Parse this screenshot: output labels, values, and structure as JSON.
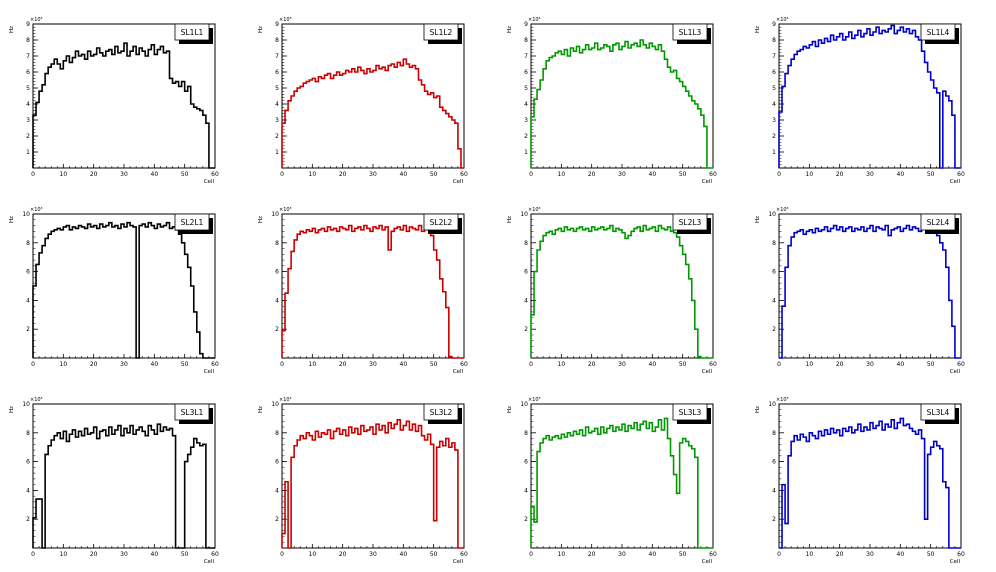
{
  "chart_data": [
    {
      "type": "step",
      "title": "SL1L1",
      "color": "#000000",
      "xlabel": "Cell",
      "ylabel": "Hz",
      "multiplier": "×10³",
      "xlim": [
        0,
        60
      ],
      "ylim": [
        0,
        9
      ],
      "xticks": [
        0,
        10,
        20,
        30,
        40,
        50,
        60
      ],
      "yticks": [
        1,
        2,
        3,
        4,
        5,
        6,
        7,
        8,
        9
      ],
      "values": [
        3.3,
        4.1,
        4.8,
        5.2,
        5.9,
        6.3,
        6.5,
        6.8,
        6.5,
        6.2,
        6.7,
        7.0,
        6.6,
        6.9,
        7.3,
        7.0,
        7.1,
        6.8,
        7.3,
        7.0,
        7.1,
        7.5,
        7.2,
        7.0,
        7.3,
        7.4,
        7.1,
        7.6,
        7.2,
        7.3,
        7.8,
        7.0,
        7.3,
        7.6,
        7.1,
        7.5,
        7.3,
        7.0,
        7.4,
        7.7,
        7.1,
        7.4,
        7.6,
        7.2,
        7.3,
        5.6,
        5.3,
        5.4,
        5.1,
        5.4,
        4.8,
        5.1,
        4.0,
        3.8,
        3.7,
        3.6,
        3.3,
        2.8,
        0,
        0
      ]
    },
    {
      "type": "step",
      "title": "SL1L2",
      "color": "#cc0000",
      "xlabel": "Cell",
      "ylabel": "Hz",
      "multiplier": "×10³",
      "xlim": [
        0,
        60
      ],
      "ylim": [
        0,
        9
      ],
      "xticks": [
        0,
        10,
        20,
        30,
        40,
        50,
        60
      ],
      "yticks": [
        1,
        2,
        3,
        4,
        5,
        6,
        7,
        8,
        9
      ],
      "values": [
        2.8,
        3.6,
        4.2,
        4.5,
        4.8,
        5.0,
        5.1,
        5.3,
        5.4,
        5.5,
        5.6,
        5.4,
        5.7,
        5.6,
        5.8,
        5.9,
        5.6,
        5.8,
        6.0,
        5.8,
        5.9,
        6.1,
        6.0,
        6.2,
        6.0,
        6.3,
        6.1,
        5.9,
        6.2,
        6.0,
        6.1,
        6.4,
        6.2,
        6.3,
        6.1,
        6.4,
        6.5,
        6.3,
        6.6,
        6.4,
        6.8,
        6.5,
        6.3,
        6.4,
        6.2,
        5.5,
        5.2,
        4.8,
        4.6,
        4.7,
        4.4,
        4.5,
        3.8,
        3.6,
        3.4,
        3.2,
        3.0,
        2.8,
        1.2,
        0
      ]
    },
    {
      "type": "step",
      "title": "SL1L3",
      "color": "#009900",
      "xlabel": "Cell",
      "ylabel": "Hz",
      "multiplier": "×10³",
      "xlim": [
        0,
        60
      ],
      "ylim": [
        0,
        9
      ],
      "xticks": [
        0,
        10,
        20,
        30,
        40,
        50,
        60
      ],
      "yticks": [
        1,
        2,
        3,
        4,
        5,
        6,
        7,
        8,
        9
      ],
      "values": [
        3.2,
        4.3,
        4.9,
        5.5,
        6.2,
        6.7,
        6.9,
        7.0,
        7.2,
        7.3,
        7.1,
        7.4,
        7.0,
        7.5,
        7.3,
        7.6,
        7.2,
        7.4,
        7.7,
        7.4,
        7.5,
        7.8,
        7.4,
        7.5,
        7.7,
        7.6,
        7.3,
        7.7,
        7.8,
        7.4,
        7.6,
        7.9,
        7.5,
        7.7,
        7.8,
        7.6,
        8.0,
        7.7,
        7.5,
        7.8,
        7.6,
        7.4,
        7.7,
        7.3,
        6.8,
        6.3,
        6.0,
        6.1,
        5.6,
        5.4,
        5.1,
        4.8,
        4.5,
        4.2,
        4.0,
        3.7,
        3.3,
        2.6,
        0,
        0
      ]
    },
    {
      "type": "step",
      "title": "SL1L4",
      "color": "#0000cc",
      "xlabel": "Cell",
      "ylabel": "Hz",
      "multiplier": "×10³",
      "xlim": [
        0,
        60
      ],
      "ylim": [
        0,
        9
      ],
      "xticks": [
        0,
        10,
        20,
        30,
        40,
        50,
        60
      ],
      "yticks": [
        1,
        2,
        3,
        4,
        5,
        6,
        7,
        8,
        9
      ],
      "values": [
        3.5,
        5.1,
        5.9,
        6.4,
        6.8,
        7.1,
        7.3,
        7.4,
        7.6,
        7.5,
        7.7,
        7.9,
        7.6,
        8.0,
        7.8,
        8.1,
        7.9,
        8.3,
        8.0,
        8.2,
        8.4,
        8.0,
        8.2,
        8.5,
        8.1,
        8.3,
        8.6,
        8.2,
        8.4,
        8.7,
        8.3,
        8.5,
        8.8,
        8.4,
        8.6,
        8.5,
        8.7,
        8.9,
        8.4,
        8.6,
        8.8,
        8.5,
        8.7,
        8.4,
        8.6,
        8.2,
        8.0,
        7.3,
        6.6,
        6.0,
        5.5,
        5.0,
        4.7,
        0,
        4.8,
        4.5,
        4.2,
        3.3,
        0,
        0
      ]
    },
    {
      "type": "step",
      "title": "SL2L1",
      "color": "#000000",
      "xlabel": "Cell",
      "ylabel": "Hz",
      "multiplier": "×10³",
      "xlim": [
        0,
        60
      ],
      "ylim": [
        0,
        10
      ],
      "xticks": [
        0,
        10,
        20,
        30,
        40,
        50,
        60
      ],
      "yticks": [
        2,
        4,
        6,
        8,
        10
      ],
      "values": [
        5.0,
        6.5,
        7.3,
        7.8,
        8.3,
        8.6,
        8.8,
        8.9,
        9.0,
        8.9,
        9.1,
        9.2,
        8.9,
        9.1,
        9.0,
        9.2,
        9.1,
        9.0,
        9.3,
        9.1,
        9.2,
        9.0,
        9.3,
        9.1,
        9.2,
        9.4,
        9.1,
        9.2,
        9.0,
        9.3,
        9.1,
        9.4,
        9.2,
        9.1,
        0,
        9.2,
        9.3,
        9.1,
        9.4,
        9.2,
        9.0,
        9.3,
        9.1,
        9.2,
        9.4,
        9.0,
        9.1,
        8.9,
        8.6,
        8.0,
        7.2,
        6.3,
        5.0,
        3.2,
        1.8,
        0.3,
        0,
        0,
        0,
        0
      ]
    },
    {
      "type": "step",
      "title": "SL2L2",
      "color": "#cc0000",
      "xlabel": "Cell",
      "ylabel": "Hz",
      "multiplier": "×10³",
      "xlim": [
        0,
        60
      ],
      "ylim": [
        0,
        10
      ],
      "xticks": [
        0,
        10,
        20,
        30,
        40,
        50,
        60
      ],
      "yticks": [
        2,
        4,
        6,
        8,
        10
      ],
      "values": [
        1.9,
        4.5,
        6.2,
        7.4,
        8.2,
        8.6,
        8.8,
        8.7,
        8.9,
        8.8,
        9.0,
        8.7,
        8.9,
        9.0,
        8.8,
        9.1,
        8.9,
        9.0,
        8.8,
        9.1,
        9.0,
        8.9,
        9.2,
        8.8,
        9.0,
        9.1,
        8.9,
        9.2,
        9.0,
        8.8,
        9.1,
        9.0,
        9.2,
        8.9,
        9.1,
        7.5,
        8.8,
        9.0,
        9.1,
        8.9,
        9.2,
        8.8,
        9.1,
        9.0,
        8.9,
        9.2,
        8.8,
        9.3,
        8.9,
        8.5,
        7.5,
        6.8,
        5.5,
        4.6,
        3.5,
        0.1,
        0,
        0,
        0,
        0
      ]
    },
    {
      "type": "step",
      "title": "SL2L3",
      "color": "#009900",
      "xlabel": "Cell",
      "ylabel": "Hz",
      "multiplier": "×10³",
      "xlim": [
        0,
        60
      ],
      "ylim": [
        0,
        10
      ],
      "xticks": [
        0,
        10,
        20,
        30,
        40,
        50,
        60
      ],
      "yticks": [
        2,
        4,
        6,
        8,
        10
      ],
      "values": [
        3.0,
        6.0,
        7.5,
        8.1,
        8.5,
        8.7,
        8.8,
        8.6,
        8.9,
        9.0,
        8.8,
        9.1,
        8.9,
        9.0,
        8.8,
        9.0,
        9.1,
        8.9,
        9.0,
        8.8,
        9.1,
        8.9,
        9.0,
        9.1,
        8.9,
        9.0,
        9.2,
        8.8,
        9.0,
        8.9,
        8.7,
        8.3,
        8.5,
        8.8,
        9.0,
        9.1,
        8.8,
        9.2,
        8.9,
        9.0,
        9.1,
        8.8,
        9.2,
        9.0,
        8.9,
        9.1,
        8.8,
        8.7,
        8.4,
        7.8,
        7.2,
        6.5,
        5.5,
        4.0,
        2.0,
        0.1,
        0,
        0,
        0,
        0
      ]
    },
    {
      "type": "step",
      "title": "SL2L4",
      "color": "#0000cc",
      "xlabel": "Cell",
      "ylabel": "Hz",
      "multiplier": "×10³",
      "xlim": [
        0,
        60
      ],
      "ylim": [
        0,
        10
      ],
      "xticks": [
        0,
        10,
        20,
        30,
        40,
        50,
        60
      ],
      "yticks": [
        2,
        4,
        6,
        8,
        10
      ],
      "values": [
        0,
        3.6,
        6.3,
        7.8,
        8.4,
        8.7,
        8.8,
        8.9,
        8.6,
        8.8,
        8.9,
        8.7,
        9.0,
        8.8,
        8.9,
        9.1,
        8.8,
        9.0,
        9.2,
        8.9,
        9.1,
        8.8,
        9.0,
        9.1,
        8.8,
        9.0,
        8.9,
        9.1,
        8.8,
        9.0,
        9.2,
        8.8,
        9.1,
        9.0,
        8.9,
        9.2,
        8.5,
        8.9,
        9.0,
        9.1,
        8.8,
        9.0,
        9.2,
        8.9,
        9.1,
        9.0,
        8.8,
        9.1,
        9.0,
        8.9,
        9.2,
        8.8,
        8.5,
        8.0,
        7.5,
        6.3,
        4.0,
        2.2,
        0,
        0
      ]
    },
    {
      "type": "step",
      "title": "SL3L1",
      "color": "#000000",
      "xlabel": "Cell",
      "ylabel": "Hz",
      "multiplier": "×10³",
      "xlim": [
        0,
        60
      ],
      "ylim": [
        0,
        10
      ],
      "xticks": [
        0,
        10,
        20,
        30,
        40,
        50,
        60
      ],
      "yticks": [
        2,
        4,
        6,
        8,
        10
      ],
      "values": [
        2.1,
        3.4,
        3.4,
        0,
        6.5,
        7.1,
        7.5,
        7.8,
        8.0,
        7.6,
        8.1,
        7.4,
        7.9,
        8.2,
        7.7,
        8.1,
        7.8,
        8.3,
        7.9,
        8.0,
        8.4,
        7.6,
        8.1,
        8.2,
        7.8,
        8.4,
        7.9,
        8.2,
        8.5,
        7.8,
        8.3,
        8.0,
        8.5,
        7.9,
        8.2,
        8.4,
        8.1,
        7.8,
        8.5,
        8.2,
        7.9,
        8.6,
        8.1,
        8.4,
        8.2,
        8.3,
        7.8,
        0,
        0,
        0,
        6.0,
        6.5,
        7.0,
        7.6,
        7.3,
        7.1,
        7.2,
        0,
        0,
        0
      ]
    },
    {
      "type": "step",
      "title": "SL3L2",
      "color": "#cc0000",
      "xlabel": "Cell",
      "ylabel": "Hz",
      "multiplier": "×10³",
      "xlim": [
        0,
        60
      ],
      "ylim": [
        0,
        10
      ],
      "xticks": [
        0,
        10,
        20,
        30,
        40,
        50,
        60
      ],
      "yticks": [
        2,
        4,
        6,
        8,
        10
      ],
      "values": [
        1.0,
        4.6,
        0,
        6.3,
        7.1,
        7.5,
        7.8,
        7.6,
        8.0,
        7.8,
        7.5,
        8.1,
        7.7,
        8.0,
        7.9,
        8.2,
        7.6,
        8.1,
        8.3,
        7.9,
        8.2,
        7.8,
        8.4,
        8.0,
        8.3,
        7.9,
        8.5,
        8.1,
        8.2,
        8.4,
        7.9,
        8.6,
        8.2,
        8.5,
        8.0,
        8.7,
        8.3,
        8.6,
        8.9,
        8.2,
        8.5,
        8.8,
        8.2,
        8.6,
        8.1,
        8.5,
        7.8,
        7.5,
        7.9,
        7.2,
        1.9,
        7.0,
        7.4,
        7.1,
        7.6,
        7.0,
        7.3,
        6.8,
        0,
        0
      ]
    },
    {
      "type": "step",
      "title": "SL3L3",
      "color": "#009900",
      "xlabel": "Cell",
      "ylabel": "Hz",
      "multiplier": "×10³",
      "xlim": [
        0,
        60
      ],
      "ylim": [
        0,
        10
      ],
      "xticks": [
        0,
        10,
        20,
        30,
        40,
        50,
        60
      ],
      "yticks": [
        2,
        4,
        6,
        8,
        10
      ],
      "values": [
        2.9,
        1.8,
        6.7,
        7.3,
        7.6,
        7.8,
        7.5,
        7.7,
        7.8,
        7.6,
        7.9,
        7.7,
        8.0,
        7.8,
        8.1,
        7.9,
        8.2,
        7.8,
        8.4,
        8.0,
        8.1,
        8.3,
        7.9,
        8.4,
        8.0,
        8.3,
        8.5,
        8.1,
        8.4,
        8.2,
        8.6,
        8.1,
        8.5,
        8.3,
        8.7,
        8.2,
        8.6,
        8.8,
        8.3,
        8.7,
        8.1,
        8.4,
        8.9,
        8.2,
        9.0,
        7.6,
        6.4,
        5.1,
        3.8,
        7.3,
        7.6,
        7.4,
        7.1,
        6.9,
        6.3,
        0,
        0,
        0,
        0,
        0
      ]
    },
    {
      "type": "step",
      "title": "SL3L4",
      "color": "#0000cc",
      "xlabel": "Cell",
      "ylabel": "Hz",
      "multiplier": "×10³",
      "xlim": [
        0,
        60
      ],
      "ylim": [
        0,
        10
      ],
      "xticks": [
        0,
        10,
        20,
        30,
        40,
        50,
        60
      ],
      "yticks": [
        2,
        4,
        6,
        8,
        10
      ],
      "values": [
        0,
        4.4,
        1.7,
        6.4,
        7.4,
        7.8,
        7.5,
        7.9,
        7.7,
        7.4,
        8.0,
        7.8,
        7.6,
        8.1,
        7.8,
        8.2,
        7.9,
        8.3,
        8.0,
        8.2,
        7.8,
        8.3,
        8.1,
        8.4,
        8.0,
        8.2,
        8.6,
        8.1,
        8.4,
        8.2,
        8.7,
        8.3,
        8.5,
        8.8,
        8.2,
        8.6,
        8.4,
        8.9,
        8.3,
        8.7,
        9.0,
        8.5,
        8.6,
        8.3,
        8.1,
        7.9,
        8.2,
        7.6,
        2.0,
        6.5,
        7.0,
        7.4,
        7.1,
        6.9,
        4.6,
        4.2,
        0,
        0,
        0,
        0
      ]
    }
  ]
}
